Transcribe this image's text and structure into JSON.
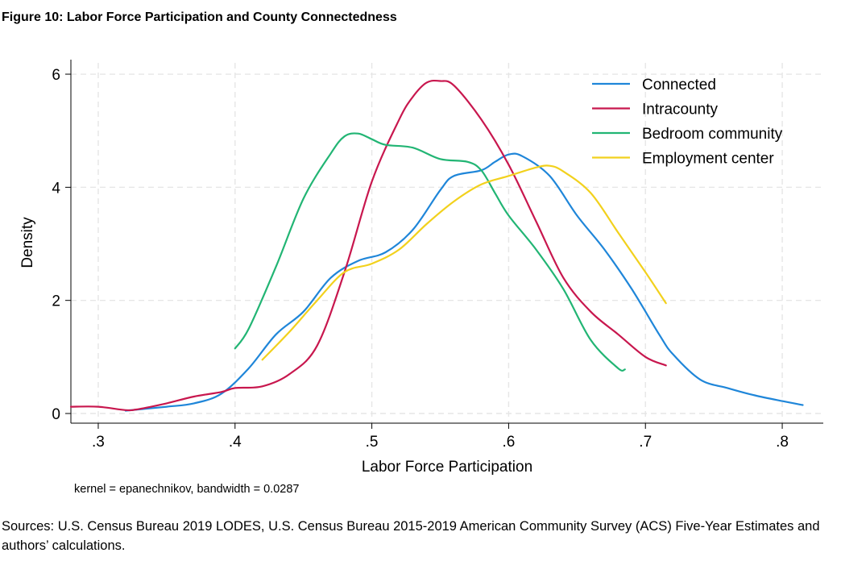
{
  "figure_title": "Figure 10: Labor Force Participation and County Connectedness",
  "sources": "Sources: U.S. Census Bureau 2019 LODES, U.S. Census Bureau 2015-2019 American Community Survey (ACS) Five-Year Estimates and authors’ calculations.",
  "chart_data": {
    "type": "line",
    "title": "",
    "xlabel": "Labor Force Participation",
    "ylabel": "Density",
    "note": "kernel = epanechnikov, bandwidth = 0.0287",
    "xlim": [
      0.28,
      0.83
    ],
    "ylim": [
      0,
      6.2
    ],
    "xticks": [
      0.3,
      0.4,
      0.5,
      0.6,
      0.7,
      0.8
    ],
    "xtick_labels": [
      ".3",
      ".4",
      ".5",
      ".6",
      ".7",
      ".8"
    ],
    "yticks": [
      0,
      2,
      4,
      6
    ],
    "ytick_labels": [
      "0",
      "2",
      "4",
      "6"
    ],
    "grid": true,
    "legend_position": "top-right",
    "series": [
      {
        "name": "Connected",
        "color": "#1f86d9",
        "x": [
          0.32,
          0.35,
          0.37,
          0.39,
          0.41,
          0.43,
          0.45,
          0.47,
          0.49,
          0.51,
          0.53,
          0.55,
          0.56,
          0.58,
          0.59,
          0.6,
          0.61,
          0.63,
          0.65,
          0.67,
          0.69,
          0.71,
          0.72,
          0.74,
          0.76,
          0.78,
          0.8,
          0.815
        ],
        "values": [
          0.05,
          0.12,
          0.18,
          0.35,
          0.8,
          1.4,
          1.8,
          2.4,
          2.7,
          2.85,
          3.25,
          3.95,
          4.2,
          4.3,
          4.45,
          4.58,
          4.55,
          4.2,
          3.5,
          2.9,
          2.2,
          1.4,
          1.05,
          0.6,
          0.45,
          0.32,
          0.22,
          0.15
        ]
      },
      {
        "name": "Intracounty",
        "color": "#c8174e",
        "x": [
          0.28,
          0.3,
          0.32,
          0.33,
          0.35,
          0.37,
          0.39,
          0.4,
          0.42,
          0.44,
          0.46,
          0.48,
          0.5,
          0.52,
          0.53,
          0.54,
          0.55,
          0.56,
          0.58,
          0.6,
          0.62,
          0.64,
          0.66,
          0.68,
          0.7,
          0.715
        ],
        "values": [
          0.12,
          0.12,
          0.06,
          0.08,
          0.18,
          0.3,
          0.38,
          0.45,
          0.48,
          0.7,
          1.2,
          2.5,
          4.1,
          5.2,
          5.6,
          5.85,
          5.88,
          5.8,
          5.2,
          4.4,
          3.4,
          2.4,
          1.8,
          1.4,
          1.0,
          0.85
        ]
      },
      {
        "name": "Bedroom community",
        "color": "#22b574",
        "x": [
          0.4,
          0.41,
          0.43,
          0.45,
          0.47,
          0.48,
          0.49,
          0.5,
          0.51,
          0.53,
          0.55,
          0.57,
          0.58,
          0.59,
          0.6,
          0.62,
          0.64,
          0.66,
          0.68,
          0.685
        ],
        "values": [
          1.15,
          1.5,
          2.6,
          3.8,
          4.6,
          4.9,
          4.95,
          4.85,
          4.75,
          4.7,
          4.5,
          4.45,
          4.3,
          3.9,
          3.5,
          2.9,
          2.2,
          1.3,
          0.8,
          0.78
        ]
      },
      {
        "name": "Employment center",
        "color": "#f2d11d",
        "x": [
          0.42,
          0.44,
          0.46,
          0.48,
          0.5,
          0.52,
          0.54,
          0.56,
          0.58,
          0.6,
          0.62,
          0.63,
          0.64,
          0.66,
          0.68,
          0.7,
          0.715
        ],
        "values": [
          0.95,
          1.45,
          2.0,
          2.5,
          2.65,
          2.9,
          3.35,
          3.75,
          4.05,
          4.2,
          4.35,
          4.38,
          4.28,
          3.9,
          3.2,
          2.5,
          1.95
        ]
      }
    ]
  }
}
